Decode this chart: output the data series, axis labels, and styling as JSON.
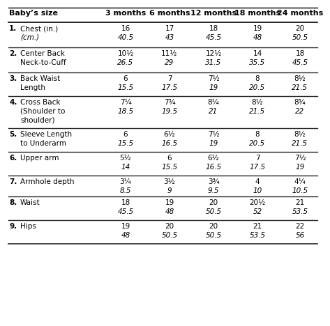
{
  "columns": [
    "Baby’s size",
    "3 months",
    "6 months",
    "12 months",
    "18 months",
    "24 months"
  ],
  "rows": [
    {
      "number": "1.",
      "label": [
        "Chest (in.)",
        "(cm.)"
      ],
      "values": [
        [
          "16",
          "40.5"
        ],
        [
          "17",
          "43"
        ],
        [
          "18",
          "45.5"
        ],
        [
          "19",
          "48"
        ],
        [
          "20",
          "50.5"
        ]
      ]
    },
    {
      "number": "2.",
      "label": [
        "Center Back",
        "Neck-to-Cuff"
      ],
      "values": [
        [
          "10½",
          "26.5"
        ],
        [
          "11½",
          "29"
        ],
        [
          "12½",
          "31.5"
        ],
        [
          "14",
          "35.5"
        ],
        [
          "18",
          "45.5"
        ]
      ]
    },
    {
      "number": "3.",
      "label": [
        "Back Waist",
        "Length"
      ],
      "values": [
        [
          "6",
          "15.5"
        ],
        [
          "7",
          "17.5"
        ],
        [
          "7½",
          "19"
        ],
        [
          "8",
          "20.5"
        ],
        [
          "8½",
          "21.5"
        ]
      ]
    },
    {
      "number": "4.",
      "label": [
        "Cross Back",
        "(Shoulder to",
        "shoulder)"
      ],
      "values": [
        [
          "7¼",
          "18.5"
        ],
        [
          "7¾",
          "19.5"
        ],
        [
          "8¼",
          "21"
        ],
        [
          "8½",
          "21.5"
        ],
        [
          "8¾",
          "22"
        ]
      ]
    },
    {
      "number": "5.",
      "label": [
        "Sleeve Length",
        "to Underarm"
      ],
      "values": [
        [
          "6",
          "15.5"
        ],
        [
          "6½",
          "16.5"
        ],
        [
          "7½",
          "19"
        ],
        [
          "8",
          "20.5"
        ],
        [
          "8½",
          "21.5"
        ]
      ]
    },
    {
      "number": "6.",
      "label": [
        "Upper arm"
      ],
      "values": [
        [
          "5½",
          "14"
        ],
        [
          "6",
          "15.5"
        ],
        [
          "6½",
          "16.5"
        ],
        [
          "7",
          "17.5"
        ],
        [
          "7½",
          "19"
        ]
      ]
    },
    {
      "number": "7.",
      "label": [
        "Armhole depth"
      ],
      "values": [
        [
          "3¼",
          "8.5"
        ],
        [
          "3½",
          "9"
        ],
        [
          "3¾",
          "9.5"
        ],
        [
          "4",
          "10"
        ],
        [
          "4¼",
          "10.5"
        ]
      ]
    },
    {
      "number": "8.",
      "label": [
        "Waist"
      ],
      "values": [
        [
          "18",
          "45.5"
        ],
        [
          "19",
          "48"
        ],
        [
          "20",
          "50.5"
        ],
        [
          "20½",
          "52"
        ],
        [
          "21",
          "53.5"
        ]
      ]
    },
    {
      "number": "9.",
      "label": [
        "Hips"
      ],
      "values": [
        [
          "19",
          "48"
        ],
        [
          "20",
          "50.5"
        ],
        [
          "20",
          "50.5"
        ],
        [
          "21",
          "53.5"
        ],
        [
          "22",
          "56"
        ]
      ]
    }
  ],
  "bg_color": "#ffffff",
  "line_color": "#000000",
  "header_fontsize": 8.0,
  "body_fontsize": 7.5,
  "num_fontsize": 7.5
}
